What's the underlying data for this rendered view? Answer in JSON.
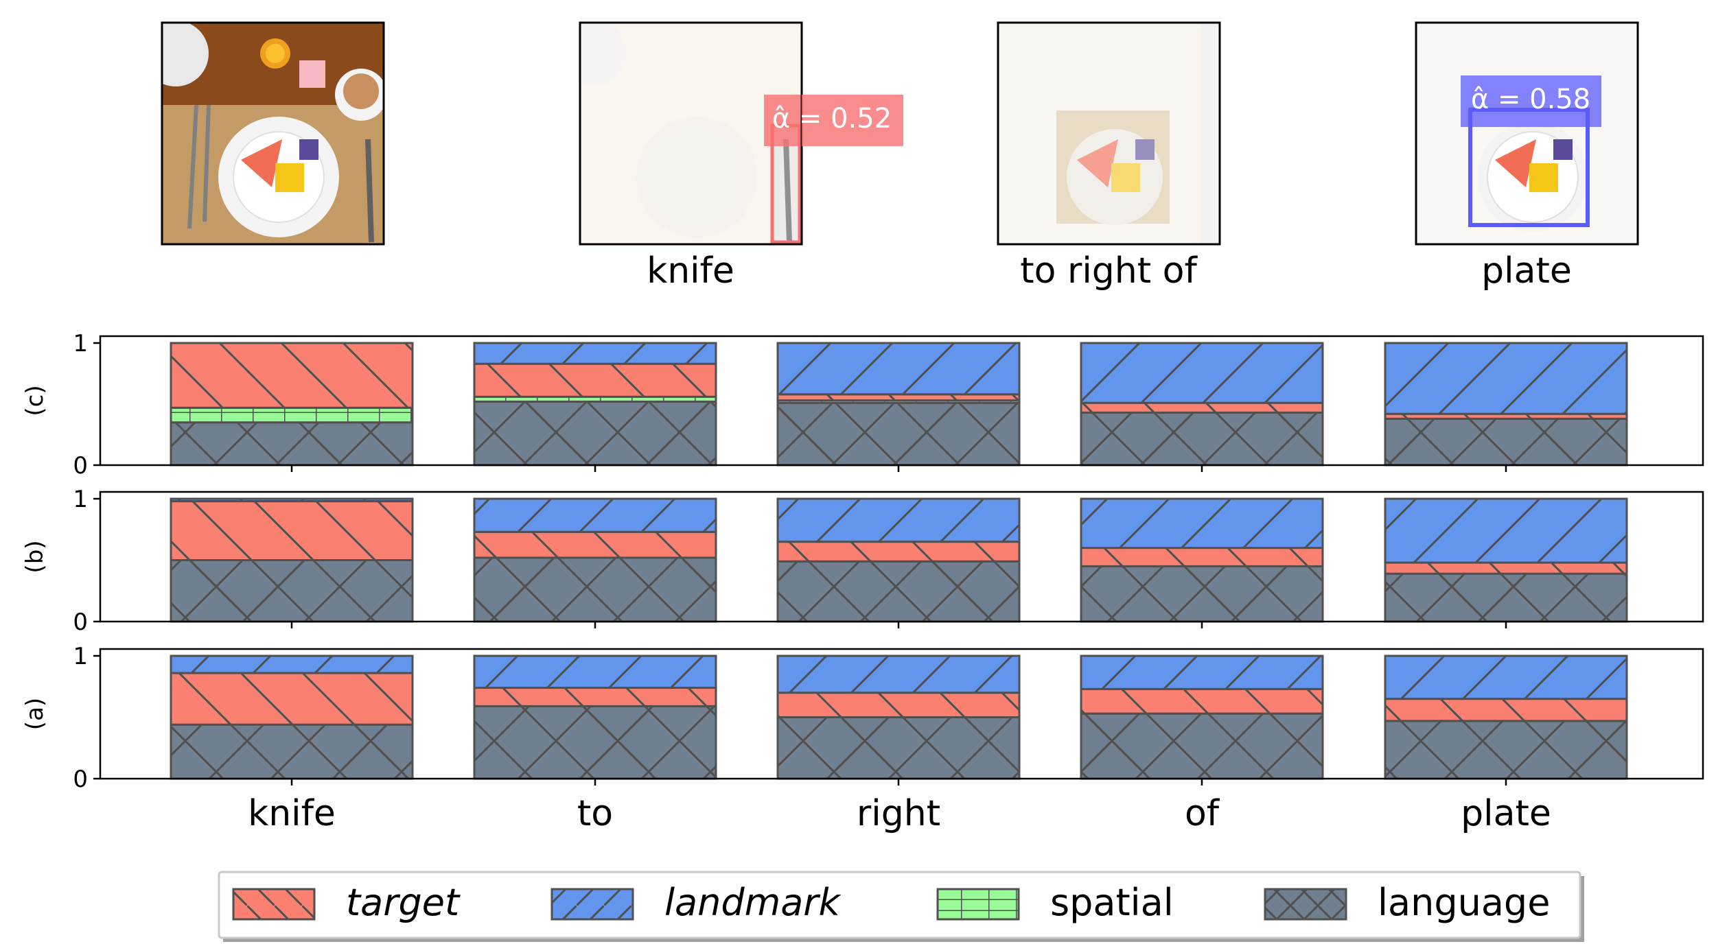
{
  "top_panels": [
    {
      "caption": "",
      "annotation": "",
      "highlight": "none"
    },
    {
      "caption": "knife",
      "annotation": "α̂ = 0.52",
      "highlight": "target",
      "box_color": "#f87171"
    },
    {
      "caption": "to right of",
      "annotation": "",
      "highlight": "spatial"
    },
    {
      "caption": "plate",
      "annotation": "α̂ = 0.58",
      "highlight": "landmark",
      "box_color": "#5b5bff"
    }
  ],
  "chart_data": [
    {
      "type": "bar",
      "stacked": true,
      "ylabel": "(c)",
      "ylim": [
        0,
        1
      ],
      "yticks": [
        "0",
        "1"
      ],
      "categories": [
        "knife",
        "to",
        "right",
        "of",
        "plate"
      ],
      "series": [
        {
          "name": "language",
          "values": [
            0.35,
            0.52,
            0.51,
            0.43,
            0.38
          ]
        },
        {
          "name": "spatial",
          "values": [
            0.12,
            0.04,
            0.02,
            0.0,
            0.0
          ]
        },
        {
          "name": "target",
          "values": [
            0.53,
            0.27,
            0.05,
            0.08,
            0.04
          ]
        },
        {
          "name": "landmark",
          "values": [
            0.0,
            0.17,
            0.42,
            0.49,
            0.58
          ]
        }
      ]
    },
    {
      "type": "bar",
      "stacked": true,
      "ylabel": "(b)",
      "ylim": [
        0,
        1
      ],
      "yticks": [
        "0",
        "1"
      ],
      "categories": [
        "knife",
        "to",
        "right",
        "of",
        "plate"
      ],
      "series": [
        {
          "name": "language",
          "values": [
            0.5,
            0.52,
            0.49,
            0.45,
            0.39
          ]
        },
        {
          "name": "spatial",
          "values": [
            0,
            0,
            0,
            0,
            0
          ]
        },
        {
          "name": "target",
          "values": [
            0.48,
            0.21,
            0.16,
            0.15,
            0.09
          ]
        },
        {
          "name": "landmark",
          "values": [
            0.02,
            0.27,
            0.35,
            0.4,
            0.52
          ]
        }
      ]
    },
    {
      "type": "bar",
      "stacked": true,
      "ylabel": "(a)",
      "ylim": [
        0,
        1
      ],
      "yticks": [
        "0",
        "1"
      ],
      "categories": [
        "knife",
        "to",
        "right",
        "of",
        "plate"
      ],
      "series": [
        {
          "name": "language",
          "values": [
            0.44,
            0.59,
            0.5,
            0.53,
            0.47
          ]
        },
        {
          "name": "spatial",
          "values": [
            0,
            0,
            0,
            0,
            0
          ]
        },
        {
          "name": "target",
          "values": [
            0.42,
            0.15,
            0.2,
            0.2,
            0.18
          ]
        },
        {
          "name": "landmark",
          "values": [
            0.14,
            0.26,
            0.3,
            0.27,
            0.35
          ]
        }
      ]
    }
  ],
  "legend": {
    "placement": "bottom-center",
    "entries": [
      {
        "key": "target",
        "label": "target",
        "italic": true,
        "color": "#fa8072",
        "hatch": "backslash"
      },
      {
        "key": "landmark",
        "label": "landmark",
        "italic": true,
        "color": "#6495ed",
        "hatch": "slash"
      },
      {
        "key": "spatial",
        "label": "spatial",
        "italic": false,
        "color": "#98fb98",
        "hatch": "plus"
      },
      {
        "key": "language",
        "label": "language",
        "italic": false,
        "color": "#708090",
        "hatch": "cross"
      }
    ]
  },
  "colors": {
    "target": "#fa8072",
    "landmark": "#6495ed",
    "spatial": "#98fb98",
    "language": "#708090",
    "edge": "#505050"
  }
}
